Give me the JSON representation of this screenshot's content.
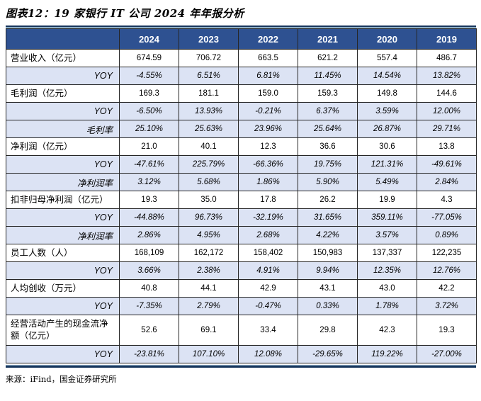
{
  "page": {
    "title": "图表12：19 家银行 IT 公司 2024 年年报分析",
    "source": "来源：iFind，国金证券研究所"
  },
  "colors": {
    "header_bg": "#2E5191",
    "header_text": "#FFFFFF",
    "shaded_row_bg": "#DCE3F4",
    "grid_line": "#262626",
    "rule_dark": "#17365D",
    "rule_light": "#8FAEC6"
  },
  "chart_data": {
    "type": "table",
    "columns": [
      "",
      "2024",
      "2023",
      "2022",
      "2021",
      "2020",
      "2019"
    ],
    "rows": [
      {
        "label": "营业收入（亿元）",
        "kind": "data",
        "values": [
          "674.59",
          "706.72",
          "663.5",
          "621.2",
          "557.4",
          "486.7"
        ]
      },
      {
        "label": "YOY",
        "kind": "yoy",
        "values": [
          "-4.55%",
          "6.51%",
          "6.81%",
          "11.45%",
          "14.54%",
          "13.82%"
        ]
      },
      {
        "label": "毛利润（亿元）",
        "kind": "data",
        "values": [
          "169.3",
          "181.1",
          "159.0",
          "159.3",
          "149.8",
          "144.6"
        ]
      },
      {
        "label": "YOY",
        "kind": "yoy",
        "values": [
          "-6.50%",
          "13.93%",
          "-0.21%",
          "6.37%",
          "3.59%",
          "12.00%"
        ]
      },
      {
        "label": "毛利率",
        "kind": "rate",
        "values": [
          "25.10%",
          "25.63%",
          "23.96%",
          "25.64%",
          "26.87%",
          "29.71%"
        ]
      },
      {
        "label": "净利润（亿元）",
        "kind": "data",
        "values": [
          "21.0",
          "40.1",
          "12.3",
          "36.6",
          "30.6",
          "13.8"
        ]
      },
      {
        "label": "YOY",
        "kind": "yoy",
        "values": [
          "-47.61%",
          "225.79%",
          "-66.36%",
          "19.75%",
          "121.31%",
          "-49.61%"
        ]
      },
      {
        "label": "净利润率",
        "kind": "rate",
        "values": [
          "3.12%",
          "5.68%",
          "1.86%",
          "5.90%",
          "5.49%",
          "2.84%"
        ]
      },
      {
        "label": "扣非归母净利润（亿元）",
        "kind": "data",
        "values": [
          "19.3",
          "35.0",
          "17.8",
          "26.2",
          "19.9",
          "4.3"
        ]
      },
      {
        "label": "YOY",
        "kind": "yoy",
        "values": [
          "-44.88%",
          "96.73%",
          "-32.19%",
          "31.65%",
          "359.11%",
          "-77.05%"
        ]
      },
      {
        "label": "净利润率",
        "kind": "rate",
        "values": [
          "2.86%",
          "4.95%",
          "2.68%",
          "4.22%",
          "3.57%",
          "0.89%"
        ]
      },
      {
        "label": "员工人数（人）",
        "kind": "data",
        "values": [
          "168,109",
          "162,172",
          "158,402",
          "150,983",
          "137,337",
          "122,235"
        ]
      },
      {
        "label": "YOY",
        "kind": "yoy",
        "values": [
          "3.66%",
          "2.38%",
          "4.91%",
          "9.94%",
          "12.35%",
          "12.76%"
        ]
      },
      {
        "label": "人均创收（万元）",
        "kind": "data",
        "values": [
          "40.8",
          "44.1",
          "42.9",
          "43.1",
          "43.0",
          "42.2"
        ]
      },
      {
        "label": "YOY",
        "kind": "yoy",
        "values": [
          "-7.35%",
          "2.79%",
          "-0.47%",
          "0.33%",
          "1.78%",
          "3.72%"
        ]
      },
      {
        "label": "经营活动产生的现金流净额（亿元）",
        "kind": "data",
        "tall": true,
        "values": [
          "52.6",
          "69.1",
          "33.4",
          "29.8",
          "42.3",
          "19.3"
        ]
      },
      {
        "label": "YOY",
        "kind": "yoy",
        "values": [
          "-23.81%",
          "107.10%",
          "12.08%",
          "-29.65%",
          "119.22%",
          "-27.00%"
        ]
      }
    ]
  }
}
